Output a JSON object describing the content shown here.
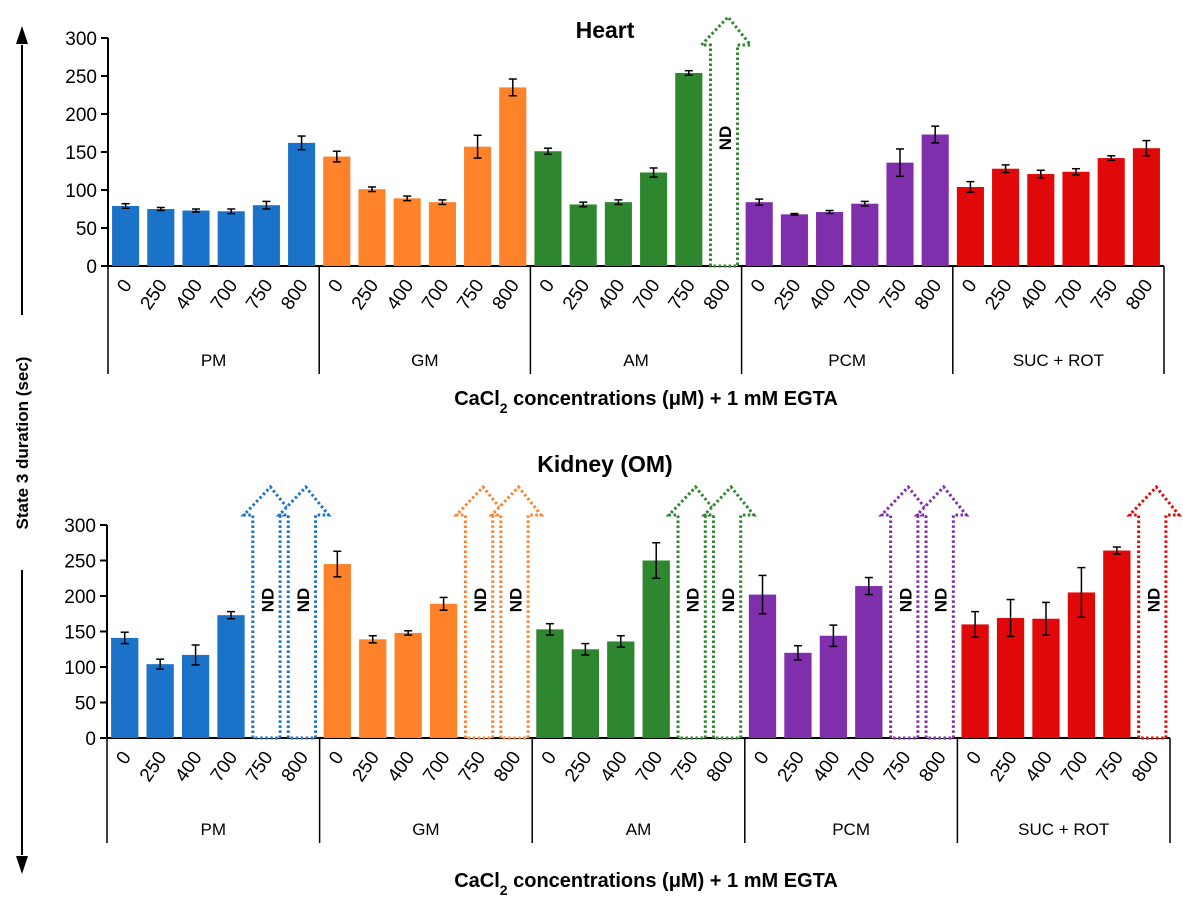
{
  "ylabel": "State 3 duration (sec)",
  "chart_data": [
    {
      "type": "bar",
      "title": "Heart",
      "xlabel_parts": [
        "CaCl",
        "2",
        " concentrations (μM) + 1 mM EGTA"
      ],
      "ylim": [
        0,
        300
      ],
      "yticks": [
        0,
        50,
        100,
        150,
        200,
        250,
        300
      ],
      "categories": [
        "0",
        "250",
        "400",
        "700",
        "750",
        "800"
      ],
      "nd_label": "ND",
      "groups": [
        {
          "name": "PM",
          "color": "#1b72c9",
          "values": [
            79,
            75,
            73,
            72,
            80,
            162
          ],
          "errors": [
            3,
            2,
            2,
            3,
            5,
            9
          ],
          "nd": [
            false,
            false,
            false,
            false,
            false,
            false
          ]
        },
        {
          "name": "GM",
          "color": "#fd822a",
          "values": [
            144,
            101,
            89,
            84,
            157,
            235
          ],
          "errors": [
            7,
            3,
            3,
            3,
            15,
            11
          ],
          "nd": [
            false,
            false,
            false,
            false,
            false,
            false
          ]
        },
        {
          "name": "AM",
          "color": "#2e862e",
          "values": [
            151,
            81,
            84,
            123,
            254,
            null
          ],
          "errors": [
            4,
            3,
            3,
            6,
            3,
            null
          ],
          "nd": [
            false,
            false,
            false,
            false,
            false,
            true
          ]
        },
        {
          "name": "PCM",
          "color": "#7f2fab",
          "values": [
            84,
            68,
            71,
            82,
            136,
            173
          ],
          "errors": [
            4,
            1,
            2,
            3,
            18,
            11
          ],
          "nd": [
            false,
            false,
            false,
            false,
            false,
            false
          ]
        },
        {
          "name": "SUC + ROT",
          "color": "#e00808",
          "values": [
            104,
            128,
            121,
            124,
            142,
            155
          ],
          "errors": [
            7,
            5,
            5,
            4,
            3,
            10
          ],
          "nd": [
            false,
            false,
            false,
            false,
            false,
            false
          ]
        }
      ]
    },
    {
      "type": "bar",
      "title": "Kidney (OM)",
      "xlabel_parts": [
        "CaCl",
        "2",
        " concentrations (μM) + 1 mM EGTA"
      ],
      "ylim": [
        0,
        300
      ],
      "yticks": [
        0,
        50,
        100,
        150,
        200,
        250,
        300
      ],
      "categories": [
        "0",
        "250",
        "400",
        "700",
        "750",
        "800"
      ],
      "nd_label": "ND",
      "groups": [
        {
          "name": "PM",
          "color": "#1b72c9",
          "values": [
            141,
            104,
            117,
            173,
            null,
            null
          ],
          "errors": [
            8,
            7,
            14,
            5,
            null,
            null
          ],
          "nd": [
            false,
            false,
            false,
            false,
            true,
            true
          ]
        },
        {
          "name": "GM",
          "color": "#fd822a",
          "values": [
            245,
            139,
            148,
            189,
            null,
            null
          ],
          "errors": [
            18,
            5,
            3,
            9,
            null,
            null
          ],
          "nd": [
            false,
            false,
            false,
            false,
            true,
            true
          ]
        },
        {
          "name": "AM",
          "color": "#2e862e",
          "values": [
            153,
            125,
            136,
            250,
            null,
            null
          ],
          "errors": [
            8,
            8,
            8,
            25,
            null,
            null
          ],
          "nd": [
            false,
            false,
            false,
            false,
            true,
            true
          ]
        },
        {
          "name": "PCM",
          "color": "#7f2fab",
          "values": [
            202,
            120,
            144,
            214,
            null,
            null
          ],
          "errors": [
            27,
            10,
            15,
            12,
            null,
            null
          ],
          "nd": [
            false,
            false,
            false,
            false,
            true,
            true
          ]
        },
        {
          "name": "SUC + ROT",
          "color": "#e00808",
          "values": [
            160,
            169,
            168,
            205,
            264,
            null
          ],
          "errors": [
            18,
            26,
            23,
            35,
            5,
            null
          ],
          "nd": [
            false,
            false,
            false,
            false,
            false,
            true
          ]
        }
      ]
    }
  ]
}
